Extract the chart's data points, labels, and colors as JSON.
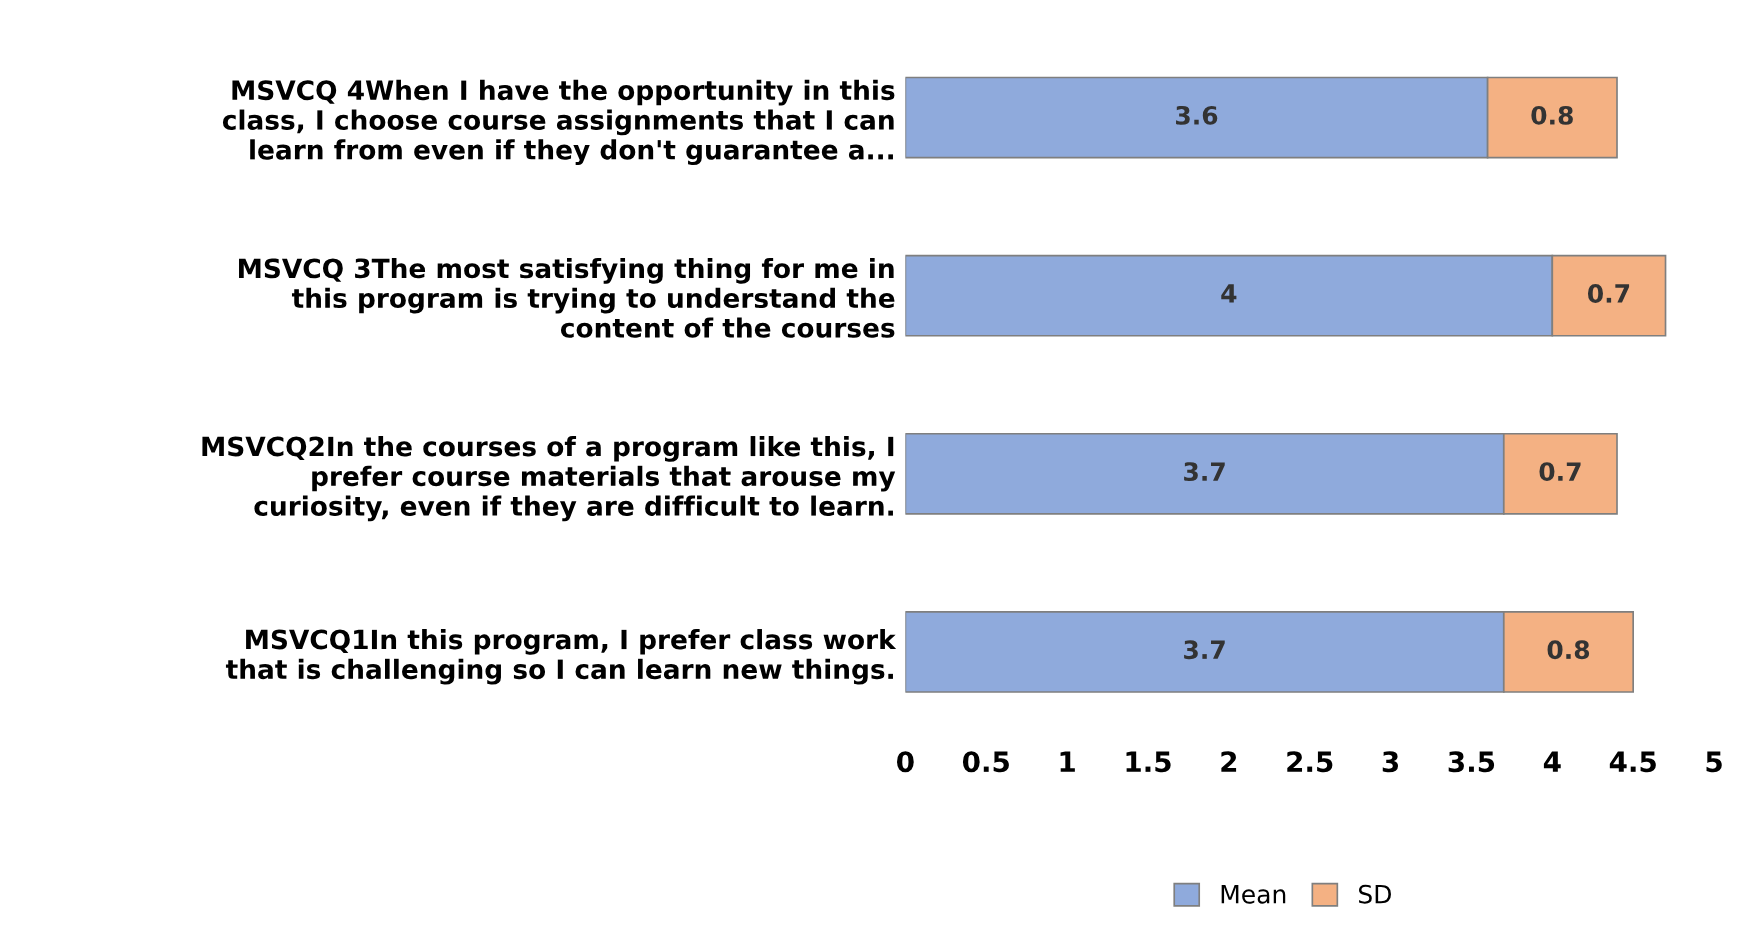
{
  "chart_data": {
    "type": "bar",
    "orientation": "horizontal",
    "stacked": true,
    "data_labels": true,
    "categories": [
      "MSVCQ 4When I have the opportunity in this\nclass, I choose course assignments that I can\nlearn from even if they don't guarantee a...",
      "MSVCQ 3The most satisfying thing for me in\nthis program is trying to understand the\ncontent of the courses",
      "MSVCQ2In the courses of a program like this, I\nprefer course materials that arouse my\ncuriosity, even if they are difficult to learn.",
      "MSVCQ1In this program, I prefer class work\nthat is challenging so I can learn new things."
    ],
    "series": [
      {
        "name": "Mean",
        "color": "#8faadc",
        "values": [
          3.6,
          4,
          3.7,
          3.7
        ]
      },
      {
        "name": "SD",
        "color": "#f4b183",
        "values": [
          0.8,
          0.7,
          0.7,
          0.8
        ]
      }
    ],
    "xlim": [
      0,
      5
    ],
    "xticks": [
      0,
      0.5,
      1,
      1.5,
      2,
      2.5,
      3,
      3.5,
      4,
      4.5,
      5
    ],
    "grid": false,
    "legend": "bottom"
  }
}
